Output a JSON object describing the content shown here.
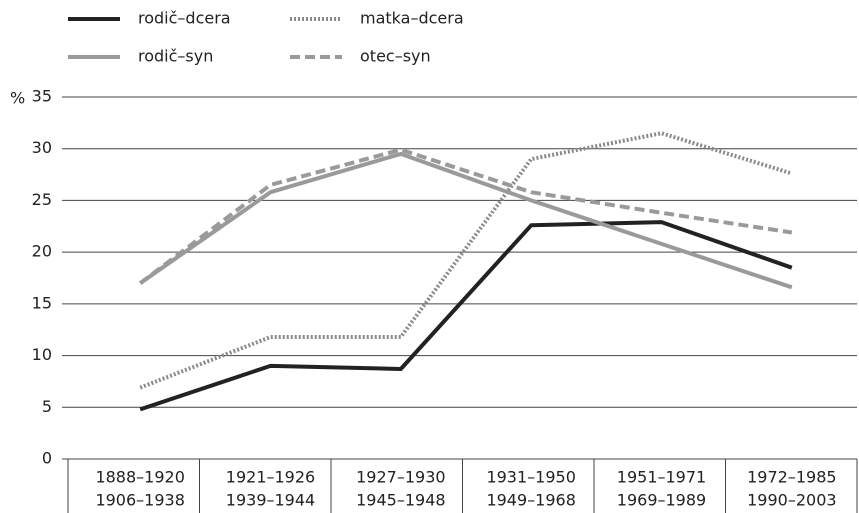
{
  "chart_data": {
    "type": "line",
    "y_label": "%",
    "categories": [
      [
        "1888–1920",
        "1906–1938"
      ],
      [
        "1921–1926",
        "1939–1944"
      ],
      [
        "1927–1930",
        "1945–1948"
      ],
      [
        "1931–1950",
        "1949–1968"
      ],
      [
        "1951–1971",
        "1969–1989"
      ],
      [
        "1972–1985",
        "1990–2003"
      ]
    ],
    "series": [
      {
        "name": "rodič–dcera",
        "color": "#222222",
        "style": "solid",
        "values": [
          4.8,
          9,
          8.7,
          22.6,
          22.9,
          18.5
        ]
      },
      {
        "name": "matka–dcera",
        "color": "#8a8a8a",
        "style": "dotted",
        "values": [
          6.9,
          11.8,
          11.8,
          29,
          31.5,
          27.6
        ]
      },
      {
        "name": "rodič–syn",
        "color": "#9a9a9a",
        "style": "solid",
        "values": [
          17,
          25.8,
          29.5,
          25,
          20.8,
          16.6
        ]
      },
      {
        "name": "otec–syn",
        "color": "#9a9a9a",
        "style": "dashed",
        "values": [
          17,
          26.5,
          29.9,
          25.8,
          23.8,
          21.9
        ]
      }
    ],
    "ylim": [
      0,
      35
    ],
    "yticks": [
      0,
      5,
      10,
      15,
      20,
      25,
      30,
      35
    ],
    "grid": true
  }
}
